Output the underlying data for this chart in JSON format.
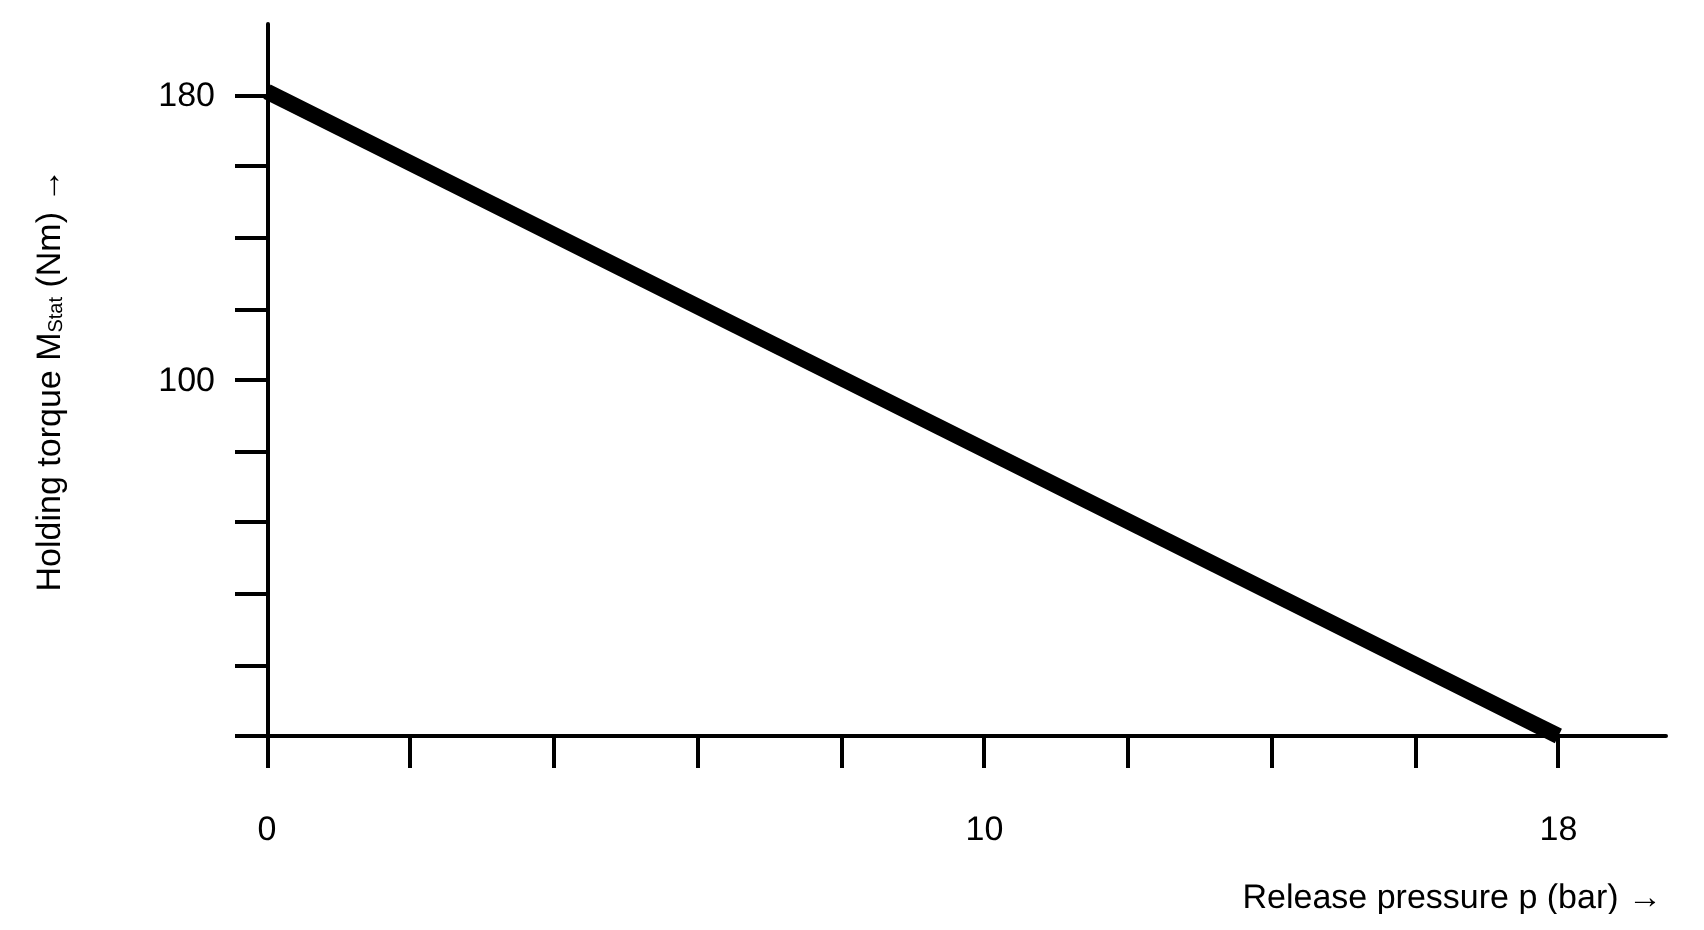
{
  "chart_data": {
    "type": "line",
    "xlabel": "Release pressure p (bar) →",
    "ylabel": "Holding torque M$_{Stat}$ (Nm) →",
    "x": [
      0,
      18
    ],
    "series": [
      {
        "color": "#000000",
        "values": [
          181,
          0
        ]
      }
    ],
    "xlim": [
      0,
      19.5
    ],
    "ylim": [
      0,
      200
    ],
    "xticks": [
      0,
      {
        "value": 2,
        "label": null
      },
      {
        "value": 4,
        "label": null
      },
      {
        "value": 6,
        "label": null
      },
      {
        "value": 8,
        "label": null
      },
      10,
      {
        "value": 12,
        "label": null
      },
      {
        "value": 14,
        "label": null
      },
      {
        "value": 16,
        "label": null
      },
      18
    ],
    "yticks": [
      {
        "value": 20,
        "label": null
      },
      {
        "value": 40,
        "label": null
      },
      {
        "value": 60,
        "label": null
      },
      {
        "value": 80,
        "label": null
      },
      100,
      {
        "value": 120,
        "label": null
      },
      {
        "value": 140,
        "label": null
      },
      {
        "value": 160,
        "label": null
      },
      180
    ],
    "grid": false,
    "marker": "none",
    "line_style": "solid"
  }
}
